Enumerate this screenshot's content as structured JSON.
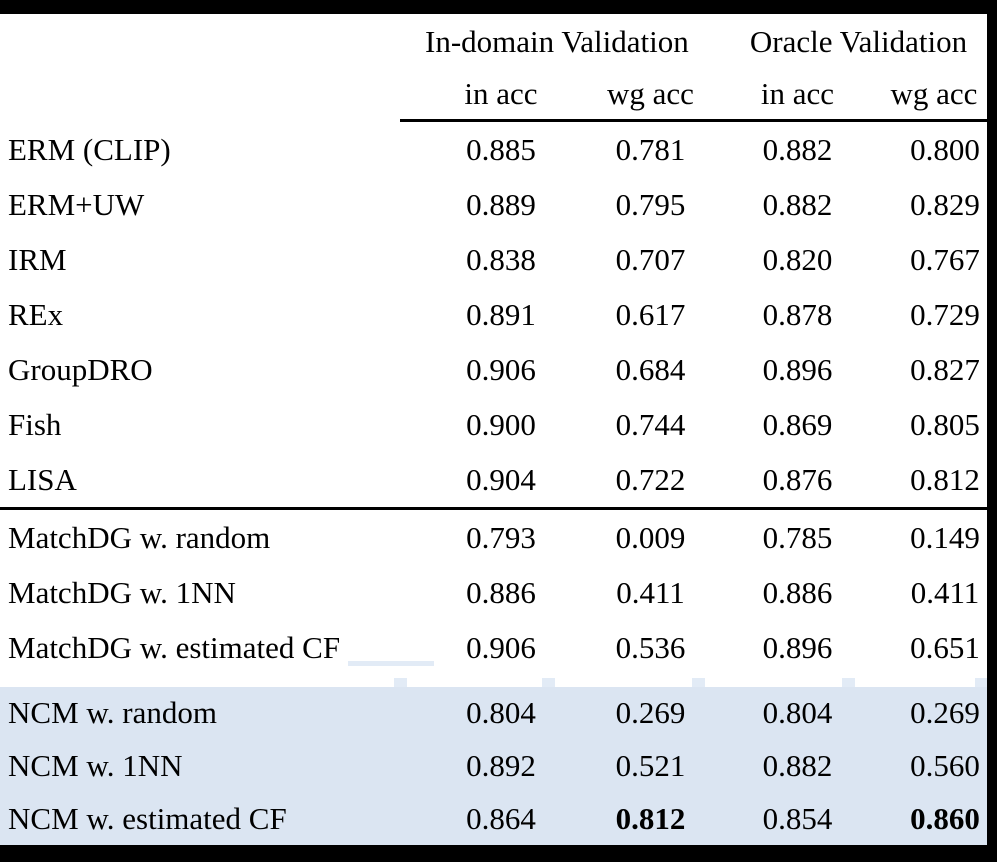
{
  "table": {
    "group_headers": {
      "indomain": "In-domain Validation",
      "oracle": "Oracle Validation"
    },
    "sub_headers": [
      "in acc",
      "wg acc",
      "in acc",
      "wg acc"
    ],
    "highlight_color": "#dbe5f2",
    "border_color": "#000000",
    "sections": [
      {
        "name": "baselines",
        "highlighted": false,
        "rows": [
          {
            "label": "ERM (CLIP)",
            "values": [
              "0.885",
              "0.781",
              "0.882",
              "0.800"
            ]
          },
          {
            "label": "ERM+UW",
            "values": [
              "0.889",
              "0.795",
              "0.882",
              "0.829"
            ]
          },
          {
            "label": "IRM",
            "values": [
              "0.838",
              "0.707",
              "0.820",
              "0.767"
            ]
          },
          {
            "label": "REx",
            "values": [
              "0.891",
              "0.617",
              "0.878",
              "0.729"
            ]
          },
          {
            "label": "GroupDRO",
            "values": [
              "0.906",
              "0.684",
              "0.896",
              "0.827"
            ]
          },
          {
            "label": "Fish",
            "values": [
              "0.900",
              "0.744",
              "0.869",
              "0.805"
            ]
          },
          {
            "label": "LISA",
            "values": [
              "0.904",
              "0.722",
              "0.876",
              "0.812"
            ]
          }
        ]
      },
      {
        "name": "matchdg",
        "highlighted": false,
        "rows": [
          {
            "label": "MatchDG w. random",
            "values": [
              "0.793",
              "0.009",
              "0.785",
              "0.149"
            ]
          },
          {
            "label": "MatchDG w. 1NN",
            "values": [
              "0.886",
              "0.411",
              "0.886",
              "0.411"
            ]
          },
          {
            "label": "MatchDG w. estimated CF",
            "values": [
              "0.906",
              "0.536",
              "0.896",
              "0.651"
            ]
          }
        ]
      },
      {
        "name": "ncm",
        "highlighted": true,
        "rows": [
          {
            "label": "NCM w. random",
            "values": [
              "0.804",
              "0.269",
              "0.804",
              "0.269"
            ],
            "bold_indices": []
          },
          {
            "label": "NCM w. 1NN",
            "values": [
              "0.892",
              "0.521",
              "0.882",
              "0.560"
            ],
            "bold_indices": []
          },
          {
            "label": "NCM w. estimated CF",
            "values": [
              "0.864",
              "0.812",
              "0.854",
              "0.860"
            ],
            "bold_indices": [
              1,
              3
            ]
          }
        ]
      }
    ]
  }
}
